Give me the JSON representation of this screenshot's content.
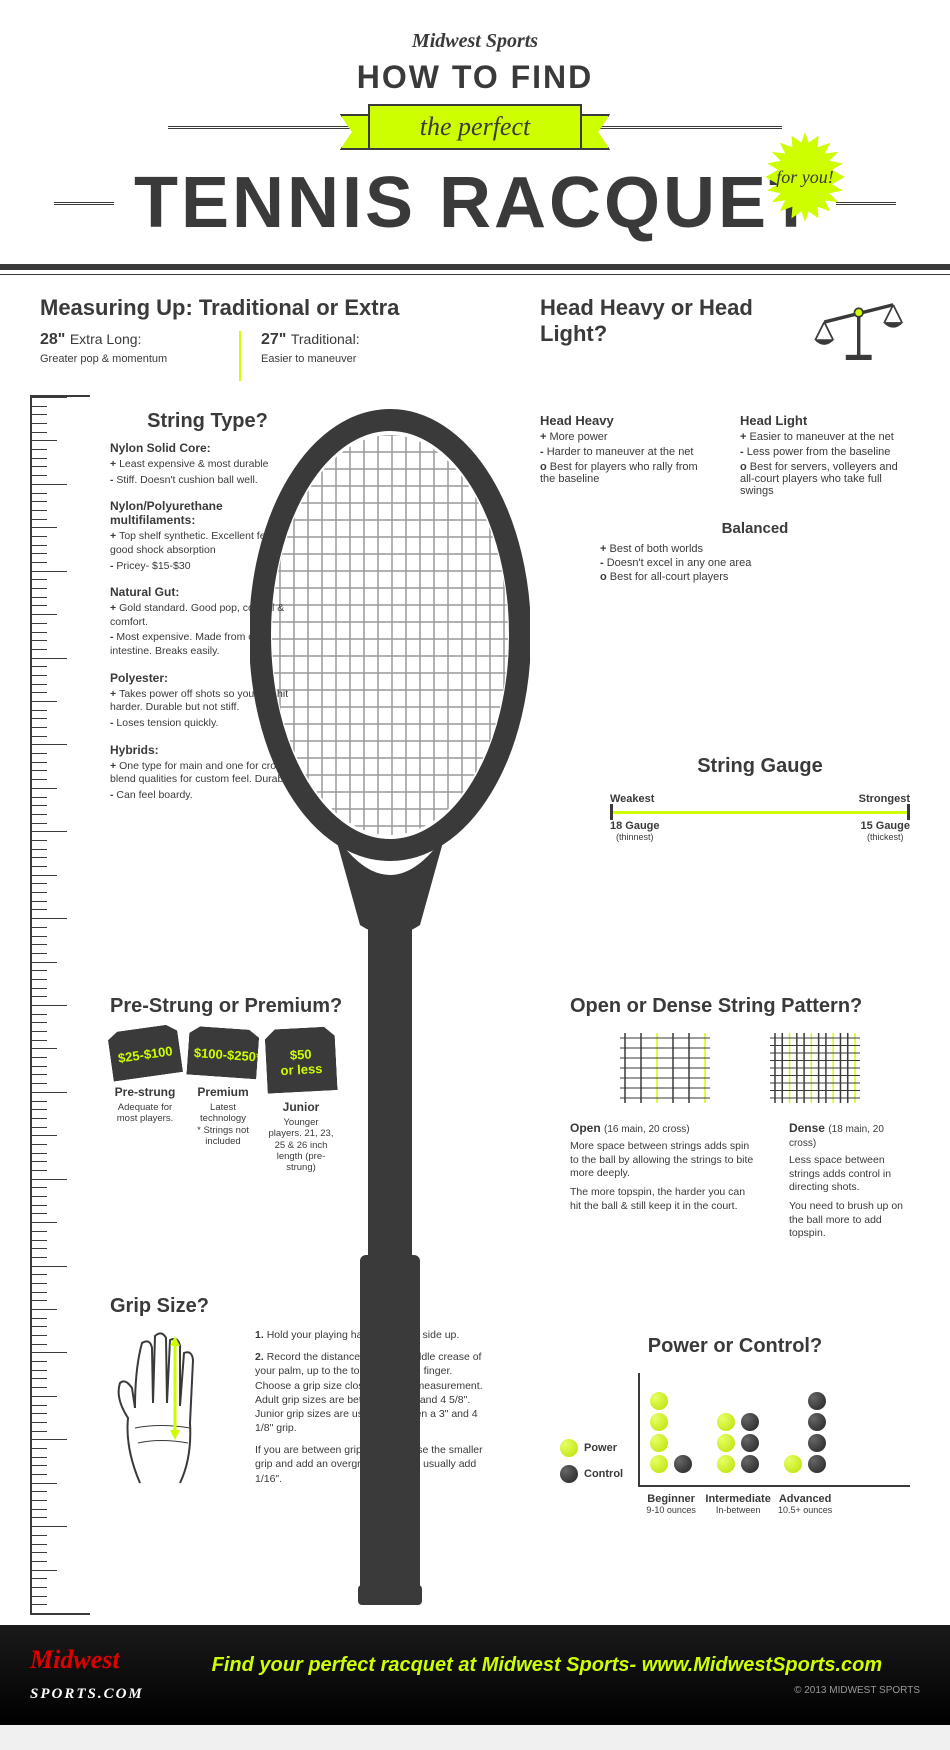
{
  "colors": {
    "accent": "#cdff00",
    "dark": "#3a3a3a",
    "bg": "#ffffff"
  },
  "header": {
    "brand": "Midwest Sports",
    "line1": "HOW TO FIND",
    "ribbon": "the perfect",
    "title": "TENNIS RACQUET",
    "burst": "for you!"
  },
  "measuring": {
    "title": "Measuring Up: Traditional or Extra",
    "extra": {
      "len": "28\"",
      "label": "Extra Long:",
      "desc": "Greater pop & momentum"
    },
    "trad": {
      "len": "27\"",
      "label": "Traditional:",
      "desc": "Easier to maneuver"
    }
  },
  "stringType": {
    "title": "String Type?",
    "items": [
      {
        "name": "Nylon Solid Core:",
        "plus": "Least expensive & most durable",
        "minus": "Stiff. Doesn't cushion ball well."
      },
      {
        "name": "Nylon/Polyurethane multifilaments:",
        "plus": "Top shelf synthetic. Excellent feel & good shock absorption",
        "minus": "Pricey- $15-$30"
      },
      {
        "name": "Natural Gut:",
        "plus": "Gold standard. Good pop, control & comfort.",
        "minus": "Most expensive. Made from cow intestine. Breaks easily."
      },
      {
        "name": "Polyester:",
        "plus": "Takes power off shots so you can hit harder. Durable but not stiff.",
        "minus": "Loses tension quickly."
      },
      {
        "name": "Hybrids:",
        "plus": "One type for main and one for cross blend qualities for custom feel. Durable",
        "minus": "Can feel boardy."
      }
    ]
  },
  "headBalance": {
    "title": "Head Heavy or Head Light?",
    "heavy": {
      "title": "Head Heavy",
      "plus": "More power",
      "minus": "Harder to maneuver at the net",
      "best": "Best for players who rally from the baseline"
    },
    "light": {
      "title": "Head Light",
      "plus": "Easier to maneuver at the net",
      "minus": "Less power from the baseline",
      "best": "Best for servers, volleyers and all-court players who take full swings"
    },
    "balanced": {
      "title": "Balanced",
      "plus": "Best of both worlds",
      "minus": "Doesn't excel in any one area",
      "best": "Best for all-court players"
    }
  },
  "gauge": {
    "title": "String Gauge",
    "weak": "Weakest",
    "strong": "Strongest",
    "left": {
      "g": "18 Gauge",
      "sub": "(thinnest)"
    },
    "right": {
      "g": "15 Gauge",
      "sub": "(thickest)"
    }
  },
  "prestrung": {
    "title": "Pre-Strung or Premium?",
    "tags": [
      {
        "price": "$25-$100",
        "name": "Pre-strung",
        "desc": "Adequate for most players."
      },
      {
        "price": "$100-$250*",
        "name": "Premium",
        "desc": "Latest technology",
        "note": "* Strings not included"
      },
      {
        "price": "$50 or less",
        "name": "Junior",
        "desc": "Younger players. 21, 23, 25 & 26 inch length (pre-strung)"
      }
    ]
  },
  "pattern": {
    "title": "Open or Dense String Pattern?",
    "open": {
      "title": "Open",
      "spec": "(16 main, 20 cross)",
      "p1": "More space between strings adds spin to the ball by allowing the strings to bite more deeply.",
      "p2": "The more topspin, the harder you can hit the ball & still keep it in the court."
    },
    "dense": {
      "title": "Dense",
      "spec": "(18 main, 20 cross)",
      "p1": "Less space between strings adds control in directing shots.",
      "p2": "You need to brush up on the ball more to add topspin."
    },
    "open_mains": 16,
    "open_cross": 20,
    "dense_mains": 18,
    "dense_cross": 20
  },
  "grip": {
    "title": "Grip Size?",
    "steps": [
      "Hold your playing hand flat, palm side up.",
      "Record the distance from the middle crease of your palm, up to the top of your ring finger. Choose a grip size closest to your measurement. Adult grip sizes are between 4 1/8\" and 4 5/8\". Junior grip sizes are usually between a 3\" and 4 1/8\" grip."
    ],
    "note": "If you are between grip sizes, choose the smaller grip and add an overgrip. Overgrips usually add 1/16\"."
  },
  "powerControl": {
    "title": "Power or Control?",
    "legend": {
      "power": "Power",
      "control": "Control"
    },
    "levels": [
      {
        "name": "Beginner",
        "sub": "9-10 ounces",
        "power": 4,
        "control": 1
      },
      {
        "name": "Intermediate",
        "sub": "In-between",
        "power": 3,
        "control": 3
      },
      {
        "name": "Advanced",
        "sub": "10.5+ ounces",
        "power": 1,
        "control": 4
      }
    ]
  },
  "footer": {
    "cta": "Find your perfect racquet at Midwest Sports- www.MidwestSports.com",
    "copy": "© 2013 MIDWEST SPORTS"
  }
}
